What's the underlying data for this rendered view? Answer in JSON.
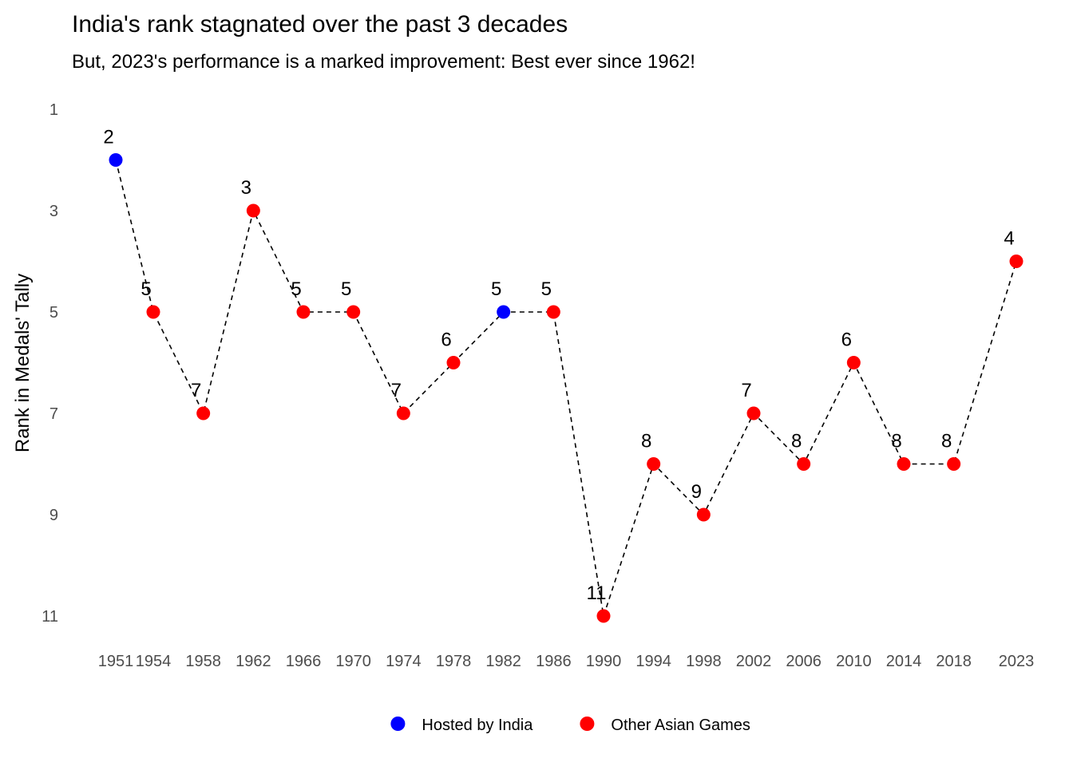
{
  "chart_data": {
    "type": "line",
    "title": "India's rank stagnated over the past 3 decades",
    "subtitle": "But, 2023's performance is a marked improvement: Best ever since 1962!",
    "xlabel": "",
    "ylabel": "Rank in Medals' Tally",
    "x": [
      1951,
      1954,
      1958,
      1962,
      1966,
      1970,
      1974,
      1978,
      1982,
      1986,
      1990,
      1994,
      1998,
      2002,
      2006,
      2010,
      2014,
      2018,
      2023
    ],
    "x_tick_labels": [
      "1951",
      "1954",
      "1958",
      "1962",
      "1966",
      "1970",
      "1974",
      "1978",
      "1982",
      "1986",
      "1990",
      "1994",
      "1998",
      "2002",
      "2006",
      "2010",
      "2014",
      "2018",
      "2023"
    ],
    "values": [
      2,
      5,
      7,
      3,
      5,
      5,
      7,
      6,
      5,
      5,
      11,
      8,
      9,
      7,
      8,
      6,
      8,
      8,
      4
    ],
    "data_labels": [
      "2",
      "5",
      "7",
      "3",
      "5",
      "5",
      "7",
      "6",
      "5",
      "5",
      "11",
      "8",
      "9",
      "7",
      "8",
      "6",
      "8",
      "8",
      "4"
    ],
    "category": [
      "Hosted by India",
      "Other Asian Games",
      "Other Asian Games",
      "Other Asian Games",
      "Other Asian Games",
      "Other Asian Games",
      "Other Asian Games",
      "Other Asian Games",
      "Hosted by India",
      "Other Asian Games",
      "Other Asian Games",
      "Other Asian Games",
      "Other Asian Games",
      "Other Asian Games",
      "Other Asian Games",
      "Other Asian Games",
      "Other Asian Games",
      "Other Asian Games",
      "Other Asian Games"
    ],
    "y_ticks": [
      1,
      3,
      5,
      7,
      9,
      11
    ],
    "y_tick_labels": [
      "1",
      "3",
      "5",
      "7",
      "9",
      "11"
    ],
    "ylim": [
      1,
      11
    ],
    "y_reversed": true,
    "xlim": [
      1951,
      2023
    ],
    "grid": false,
    "line_style": "dashed",
    "line_color": "#000000",
    "legend": {
      "position": "bottom",
      "items": [
        {
          "label": "Hosted by India",
          "color": "#0000ff"
        },
        {
          "label": "Other Asian Games",
          "color": "#ff0000"
        }
      ]
    }
  }
}
